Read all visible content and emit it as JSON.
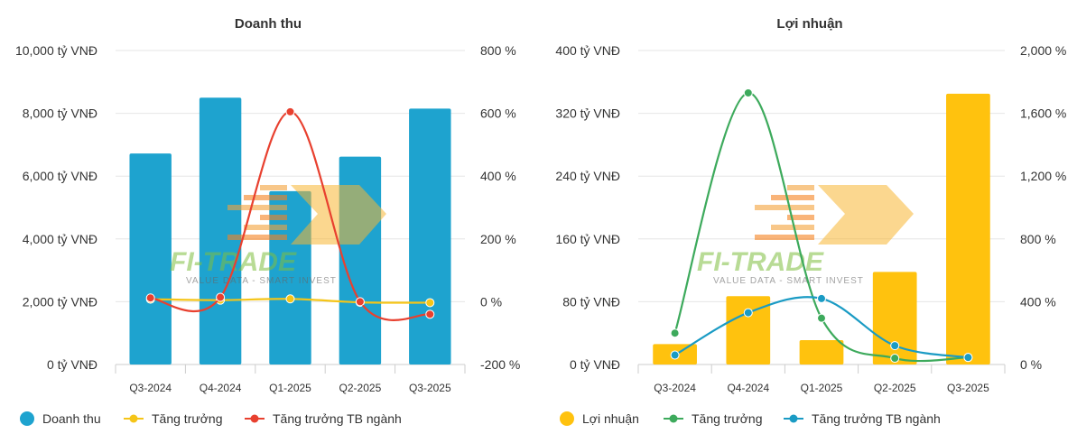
{
  "watermark": {
    "brand": "FI-TRADE",
    "tagline": "VALUE DATA - SMART INVEST"
  },
  "chart_data": [
    {
      "type": "bar",
      "title": "Doanh thu",
      "categories": [
        "Q3-2024",
        "Q4-2024",
        "Q1-2025",
        "Q2-2025",
        "Q3-2025"
      ],
      "y_left": {
        "ticks": [
          0,
          2000,
          4000,
          6000,
          8000,
          10000
        ],
        "tick_labels": [
          "0 tỷ VNĐ",
          "2,000 tỷ VNĐ",
          "4,000 tỷ VNĐ",
          "6,000 tỷ VNĐ",
          "8,000 tỷ VNĐ",
          "10,000 tỷ VNĐ"
        ],
        "ylim": [
          0,
          10000
        ]
      },
      "y_right": {
        "ticks": [
          -200,
          0,
          200,
          400,
          600,
          800
        ],
        "tick_labels": [
          "-200 %",
          "0 %",
          "200 %",
          "400 %",
          "600 %",
          "800 %"
        ],
        "ylim": [
          -200,
          800
        ]
      },
      "grid": true,
      "legend_position": "bottom-left",
      "series": [
        {
          "name": "Doanh thu",
          "kind": "bar",
          "axis": "left",
          "color": "#1ea3cf",
          "values": [
            6720,
            8500,
            5520,
            6620,
            8150
          ]
        },
        {
          "name": "Tăng trưởng",
          "kind": "line",
          "axis": "right",
          "color": "#f5c518",
          "values": [
            8,
            5,
            9,
            -2,
            -3
          ]
        },
        {
          "name": "Tăng trưởng TB ngành",
          "kind": "line",
          "axis": "right",
          "color": "#e8402f",
          "values": [
            12,
            14,
            605,
            0,
            -40
          ]
        }
      ]
    },
    {
      "type": "bar",
      "title": "Lợi nhuận",
      "categories": [
        "Q3-2024",
        "Q4-2024",
        "Q1-2025",
        "Q2-2025",
        "Q3-2025"
      ],
      "y_left": {
        "ticks": [
          0,
          80,
          160,
          240,
          320,
          400
        ],
        "tick_labels": [
          "0 tỷ VNĐ",
          "80 tỷ VNĐ",
          "160 tỷ VNĐ",
          "240 tỷ VNĐ",
          "320 tỷ VNĐ",
          "400 tỷ VNĐ"
        ],
        "ylim": [
          0,
          400
        ]
      },
      "y_right": {
        "ticks": [
          0,
          400,
          800,
          1200,
          1600,
          2000
        ],
        "tick_labels": [
          "0 %",
          "400 %",
          "800 %",
          "1,200 %",
          "1,600 %",
          "2,000 %"
        ],
        "ylim": [
          0,
          2000
        ]
      },
      "grid": true,
      "legend_position": "bottom-left",
      "series": [
        {
          "name": "Lợi nhuận",
          "kind": "bar",
          "axis": "left",
          "color": "#ffc20e",
          "values": [
            26,
            87,
            31,
            118,
            345
          ]
        },
        {
          "name": "Tăng trưởng",
          "kind": "line",
          "axis": "right",
          "color": "#3daa5c",
          "values": [
            200,
            1730,
            295,
            40,
            45
          ]
        },
        {
          "name": "Tăng trưởng TB ngành",
          "kind": "line",
          "axis": "right",
          "color": "#1a9bc4",
          "values": [
            60,
            330,
            420,
            120,
            45
          ]
        }
      ]
    }
  ]
}
